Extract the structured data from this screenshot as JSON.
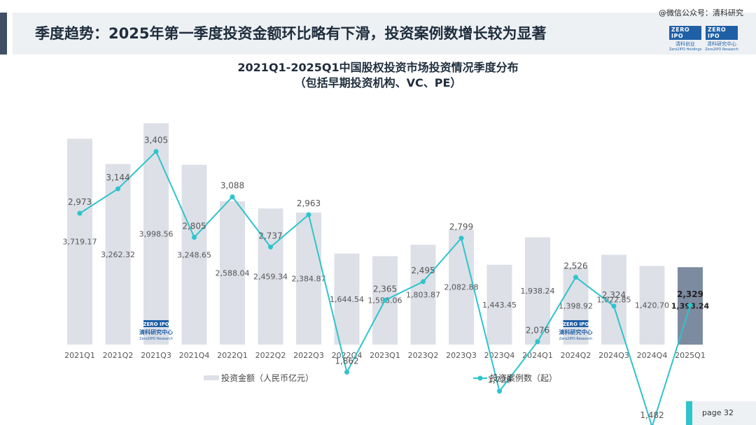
{
  "header": {
    "headline": "季度趋势：2025年第一季度投资金额环比略有下滑，投资案例数增长较为显著",
    "watermark": "@微信公众号：清科研究",
    "logos": [
      {
        "mark": "ZERO IPO",
        "cn": "清科创业",
        "en": "Zero2IPO Holdings"
      },
      {
        "mark": "ZERO IPO",
        "cn": "清科研究中心",
        "en": "Zero2IPO Research"
      }
    ]
  },
  "chart_data": {
    "type": "bar+line",
    "title": "2021Q1-2025Q1中国股权投资市场投资情况季度分布",
    "subtitle": "（包括早期投资机构、VC、PE）",
    "categories": [
      "2021Q1",
      "2021Q2",
      "2021Q3",
      "2021Q4",
      "2022Q1",
      "2022Q2",
      "2022Q3",
      "2022Q4",
      "2023Q1",
      "2023Q2",
      "2023Q3",
      "2023Q4",
      "2024Q1",
      "2024Q2",
      "2024Q3",
      "2024Q4",
      "2025Q1"
    ],
    "series": [
      {
        "name": "投资金额（人民币亿元）",
        "type": "bar",
        "color": "#dde0e7",
        "highlight_color": "#7d8ba1",
        "values": [
          3719.17,
          3262.32,
          3998.56,
          3248.65,
          2588.04,
          2459.34,
          2384.87,
          1644.54,
          1598.06,
          1803.87,
          2082.88,
          1443.45,
          1938.24,
          1398.92,
          1622.85,
          1420.7,
          1398.24
        ],
        "labels": [
          "3,719.17",
          "3,262.32",
          "3,998.56",
          "3,248.65",
          "2,588.04",
          "2,459.34",
          "2,384.87",
          "1,644.54",
          "1,598.06",
          "1,803.87",
          "2,082.88",
          "1,443.45",
          "1,938.24",
          "1,398.92",
          "1,622.85",
          "1,420.70",
          "1,398.24"
        ],
        "ylim": [
          0,
          4000
        ]
      },
      {
        "name": "投资案例数（起）",
        "type": "line",
        "color": "#2ec4cc",
        "values": [
          2973,
          3144,
          3405,
          2805,
          3088,
          2737,
          2963,
          1862,
          2365,
          2495,
          2799,
          1729,
          2076,
          2526,
          2324,
          1482,
          2329
        ],
        "labels": [
          "2,973",
          "3,144",
          "3,405",
          "2,805",
          "3,088",
          "2,737",
          "2,963",
          "1,862",
          "2,365",
          "2,495",
          "2,799",
          "1,729",
          "2,076",
          "2,526",
          "2,324",
          "1,482",
          "2,329"
        ]
      }
    ],
    "watermarks": [
      {
        "mark": "ZERO IPO",
        "cn": "清科研究中心",
        "en": "Zero2IPO Research",
        "near": "2021Q3"
      },
      {
        "mark": "ZERO IPO",
        "cn": "清科研究中心",
        "en": "Zero2IPO Research",
        "near": "2024Q2"
      }
    ],
    "legend_position": "bottom"
  },
  "footer": {
    "page_label": "page",
    "page_number": "32"
  }
}
